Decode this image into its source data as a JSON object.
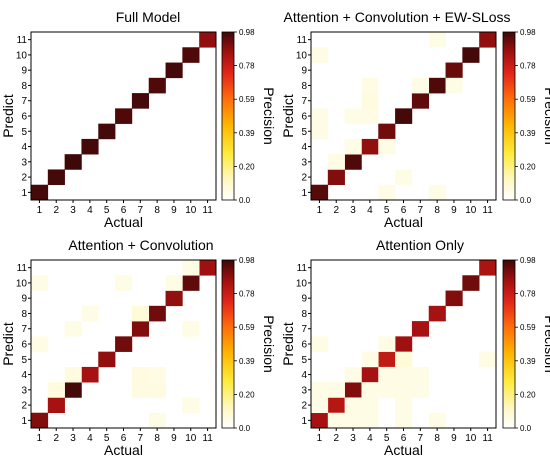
{
  "chart_data": [
    {
      "type": "heatmap",
      "title": "Full Model",
      "xlabel": "Actual",
      "ylabel": "Predict",
      "x_categories": [
        "1",
        "2",
        "3",
        "4",
        "5",
        "6",
        "7",
        "8",
        "9",
        "10",
        "11"
      ],
      "y_categories": [
        "1",
        "2",
        "3",
        "4",
        "5",
        "6",
        "7",
        "8",
        "9",
        "10",
        "11"
      ],
      "cells": [
        [
          1,
          1,
          0.97
        ],
        [
          2,
          2,
          0.97
        ],
        [
          3,
          3,
          0.98
        ],
        [
          4,
          4,
          0.97
        ],
        [
          5,
          5,
          0.97
        ],
        [
          6,
          6,
          0.96
        ],
        [
          7,
          7,
          0.97
        ],
        [
          8,
          8,
          0.96
        ],
        [
          9,
          9,
          0.97
        ],
        [
          10,
          10,
          0.96
        ],
        [
          11,
          11,
          0.88
        ]
      ],
      "colorbar": {
        "label": "Precision",
        "range": [
          0.0,
          0.98
        ],
        "ticks": [
          "0.0",
          "0.20",
          "0.39",
          "0.59",
          "0.78",
          "0.98"
        ]
      }
    },
    {
      "type": "heatmap",
      "title": "Attention + Convolution + EW-SLoss",
      "xlabel": "Actual",
      "ylabel": "Predict",
      "x_categories": [
        "1",
        "2",
        "3",
        "4",
        "5",
        "6",
        "7",
        "8",
        "9",
        "10",
        "11"
      ],
      "y_categories": [
        "1",
        "2",
        "3",
        "4",
        "5",
        "6",
        "7",
        "8",
        "9",
        "10",
        "11"
      ],
      "cells": [
        [
          1,
          1,
          0.95
        ],
        [
          2,
          2,
          0.9
        ],
        [
          3,
          3,
          0.96
        ],
        [
          4,
          4,
          0.88
        ],
        [
          5,
          5,
          0.92
        ],
        [
          6,
          6,
          0.97
        ],
        [
          7,
          7,
          0.94
        ],
        [
          8,
          8,
          0.96
        ],
        [
          9,
          9,
          0.93
        ],
        [
          10,
          10,
          0.97
        ],
        [
          11,
          11,
          0.88
        ],
        [
          5,
          1,
          0.05
        ],
        [
          8,
          1,
          0.05
        ],
        [
          6,
          2,
          0.05
        ],
        [
          2,
          3,
          0.05
        ],
        [
          3,
          4,
          0.05
        ],
        [
          5,
          4,
          0.05
        ],
        [
          1,
          5,
          0.05
        ],
        [
          4,
          6,
          0.05
        ],
        [
          1,
          6,
          0.05
        ],
        [
          3,
          6,
          0.05
        ],
        [
          4,
          7,
          0.06
        ],
        [
          4,
          8,
          0.05
        ],
        [
          7,
          8,
          0.05
        ],
        [
          9,
          8,
          0.05
        ],
        [
          1,
          10,
          0.05
        ],
        [
          8,
          11,
          0.05
        ]
      ],
      "colorbar": {
        "label": "Precision",
        "range": [
          0.0,
          0.98
        ],
        "ticks": [
          "0.0",
          "0.20",
          "0.39",
          "0.59",
          "0.78",
          "0.98"
        ]
      }
    },
    {
      "type": "heatmap",
      "title": "Attention + Convolution",
      "xlabel": "Actual",
      "ylabel": "Predict",
      "x_categories": [
        "1",
        "2",
        "3",
        "4",
        "5",
        "6",
        "7",
        "8",
        "9",
        "10",
        "11"
      ],
      "y_categories": [
        "1",
        "2",
        "3",
        "4",
        "5",
        "6",
        "7",
        "8",
        "9",
        "10",
        "11"
      ],
      "cells": [
        [
          1,
          1,
          0.9
        ],
        [
          2,
          2,
          0.85
        ],
        [
          3,
          3,
          0.97
        ],
        [
          4,
          4,
          0.85
        ],
        [
          5,
          5,
          0.88
        ],
        [
          6,
          6,
          0.92
        ],
        [
          7,
          7,
          0.9
        ],
        [
          8,
          8,
          0.92
        ],
        [
          9,
          9,
          0.88
        ],
        [
          10,
          10,
          0.94
        ],
        [
          11,
          11,
          0.86
        ],
        [
          8,
          1,
          0.05
        ],
        [
          10,
          2,
          0.05
        ],
        [
          2,
          3,
          0.06
        ],
        [
          7,
          3,
          0.06
        ],
        [
          8,
          3,
          0.06
        ],
        [
          3,
          4,
          0.06
        ],
        [
          7,
          4,
          0.06
        ],
        [
          8,
          4,
          0.05
        ],
        [
          1,
          6,
          0.05
        ],
        [
          3,
          7,
          0.05
        ],
        [
          10,
          7,
          0.05
        ],
        [
          4,
          8,
          0.05
        ],
        [
          7,
          8,
          0.08
        ],
        [
          1,
          10,
          0.05
        ],
        [
          6,
          10,
          0.05
        ],
        [
          9,
          10,
          0.05
        ],
        [
          10,
          11,
          0.05
        ]
      ],
      "colorbar": {
        "label": "Precision",
        "range": [
          0.0,
          0.98
        ],
        "ticks": [
          "0.0",
          "0.20",
          "0.39",
          "0.59",
          "0.78",
          "0.98"
        ]
      }
    },
    {
      "type": "heatmap",
      "title": "Attention Only",
      "xlabel": "Actual",
      "ylabel": "Predict",
      "x_categories": [
        "1",
        "2",
        "3",
        "4",
        "5",
        "6",
        "7",
        "8",
        "9",
        "10",
        "11"
      ],
      "y_categories": [
        "1",
        "2",
        "3",
        "4",
        "5",
        "6",
        "7",
        "8",
        "9",
        "10",
        "11"
      ],
      "cells": [
        [
          1,
          1,
          0.85
        ],
        [
          2,
          2,
          0.82
        ],
        [
          3,
          3,
          0.9
        ],
        [
          4,
          4,
          0.85
        ],
        [
          5,
          5,
          0.8
        ],
        [
          6,
          6,
          0.86
        ],
        [
          7,
          7,
          0.85
        ],
        [
          8,
          8,
          0.85
        ],
        [
          9,
          9,
          0.9
        ],
        [
          10,
          10,
          0.92
        ],
        [
          11,
          11,
          0.84
        ],
        [
          2,
          1,
          0.05
        ],
        [
          3,
          1,
          0.05
        ],
        [
          4,
          1,
          0.05
        ],
        [
          6,
          1,
          0.05
        ],
        [
          8,
          1,
          0.05
        ],
        [
          1,
          2,
          0.05
        ],
        [
          3,
          2,
          0.05
        ],
        [
          4,
          2,
          0.05
        ],
        [
          6,
          2,
          0.05
        ],
        [
          1,
          3,
          0.05
        ],
        [
          2,
          3,
          0.05
        ],
        [
          4,
          3,
          0.05
        ],
        [
          5,
          3,
          0.05
        ],
        [
          6,
          3,
          0.05
        ],
        [
          7,
          3,
          0.05
        ],
        [
          3,
          4,
          0.05
        ],
        [
          5,
          4,
          0.05
        ],
        [
          6,
          4,
          0.05
        ],
        [
          7,
          4,
          0.05
        ],
        [
          4,
          5,
          0.05
        ],
        [
          6,
          5,
          0.08
        ],
        [
          1,
          6,
          0.05
        ],
        [
          5,
          6,
          0.05
        ],
        [
          11,
          5,
          0.05
        ]
      ],
      "colorbar": {
        "label": "Precision",
        "range": [
          0.0,
          0.98
        ],
        "ticks": [
          "0.0",
          "0.20",
          "0.39",
          "0.59",
          "0.78",
          "0.98"
        ]
      }
    }
  ]
}
